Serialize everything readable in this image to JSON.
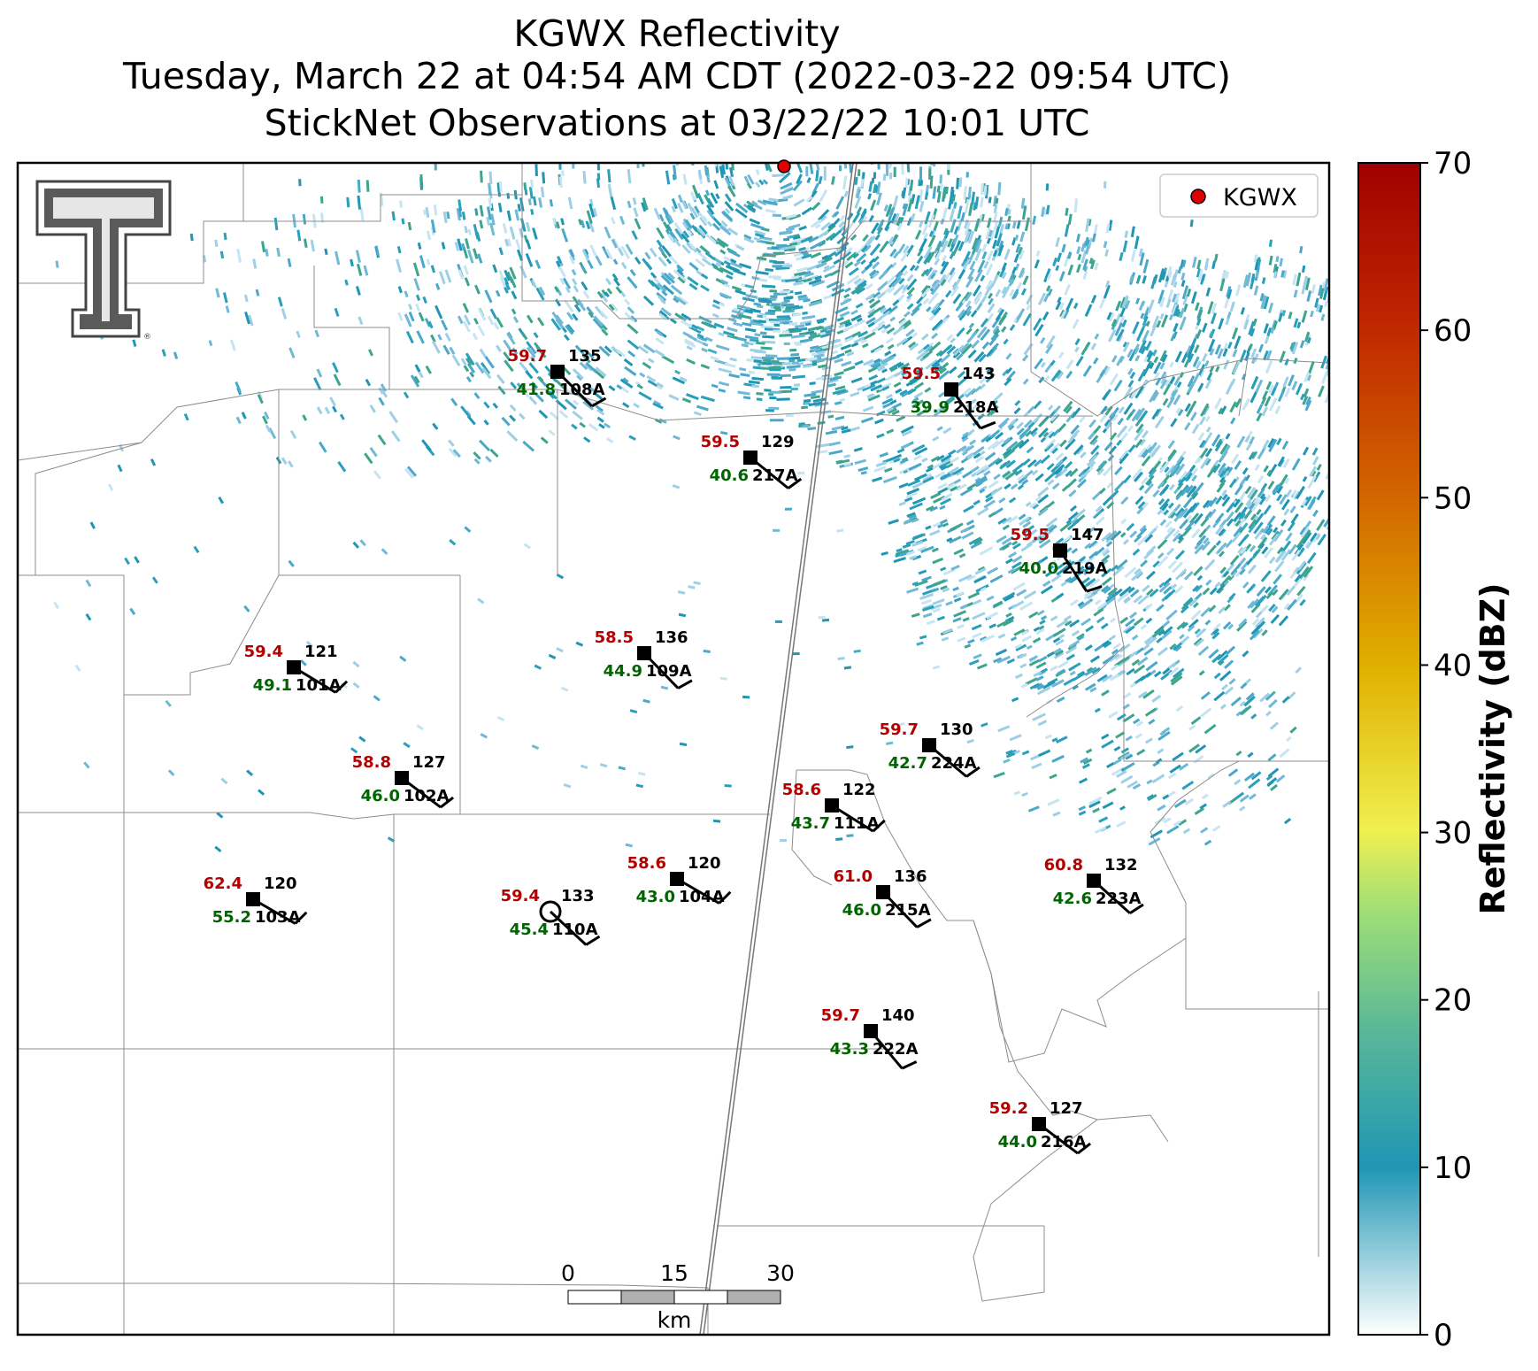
{
  "title": {
    "line1": "KGWX Reflectivity",
    "line2": "Tuesday, March 22 at 04:54 AM CDT (2022-03-22 09:54 UTC)",
    "line3": "StickNet Observations at 03/22/22 10:01 UTC"
  },
  "legend": {
    "label": "KGWX",
    "marker_color": "#e00000"
  },
  "colorbar": {
    "label": "Reflectivity (dBZ)",
    "ticks": [
      "0",
      "10",
      "20",
      "30",
      "40",
      "50",
      "60",
      "70"
    ],
    "range": [
      0,
      70
    ],
    "colors": [
      "#ffffff",
      "#1f96b4",
      "#7dcc8a",
      "#f0f050",
      "#e0b000",
      "#d26400",
      "#a00000"
    ]
  },
  "scale_bar": {
    "labels": [
      "0",
      "15",
      "30"
    ],
    "unit": "km"
  },
  "logo": {
    "name": "Texas Tech Double T"
  },
  "stations": [
    {
      "id": "108A",
      "temp": "59.7",
      "dew": "41.8",
      "dir": "135"
    },
    {
      "id": "218A",
      "temp": "59.5",
      "dew": "39.9",
      "dir": "143"
    },
    {
      "id": "217A",
      "temp": "59.5",
      "dew": "40.6",
      "dir": "129"
    },
    {
      "id": "219A",
      "temp": "59.5",
      "dew": "40.0",
      "dir": "147"
    },
    {
      "id": "109A",
      "temp": "58.5",
      "dew": "44.9",
      "dir": "136"
    },
    {
      "id": "101A",
      "temp": "59.4",
      "dew": "49.1",
      "dir": "121"
    },
    {
      "id": "224A",
      "temp": "59.7",
      "dew": "42.7",
      "dir": "130"
    },
    {
      "id": "102A",
      "temp": "58.8",
      "dew": "46.0",
      "dir": "127"
    },
    {
      "id": "111A",
      "temp": "58.6",
      "dew": "43.7",
      "dir": "122"
    },
    {
      "id": "104A",
      "temp": "58.6",
      "dew": "43.0",
      "dir": "120"
    },
    {
      "id": "215A",
      "temp": "61.0",
      "dew": "46.0",
      "dir": "136"
    },
    {
      "id": "223A",
      "temp": "60.8",
      "dew": "42.6",
      "dir": "132"
    },
    {
      "id": "103A",
      "temp": "62.4",
      "dew": "55.2",
      "dir": "120"
    },
    {
      "id": "110A",
      "temp": "59.4",
      "dew": "45.4",
      "dir": "133"
    },
    {
      "id": "222A",
      "temp": "59.7",
      "dew": "43.3",
      "dir": "140"
    },
    {
      "id": "216A",
      "temp": "59.2",
      "dew": "44.0",
      "dir": "127"
    }
  ]
}
